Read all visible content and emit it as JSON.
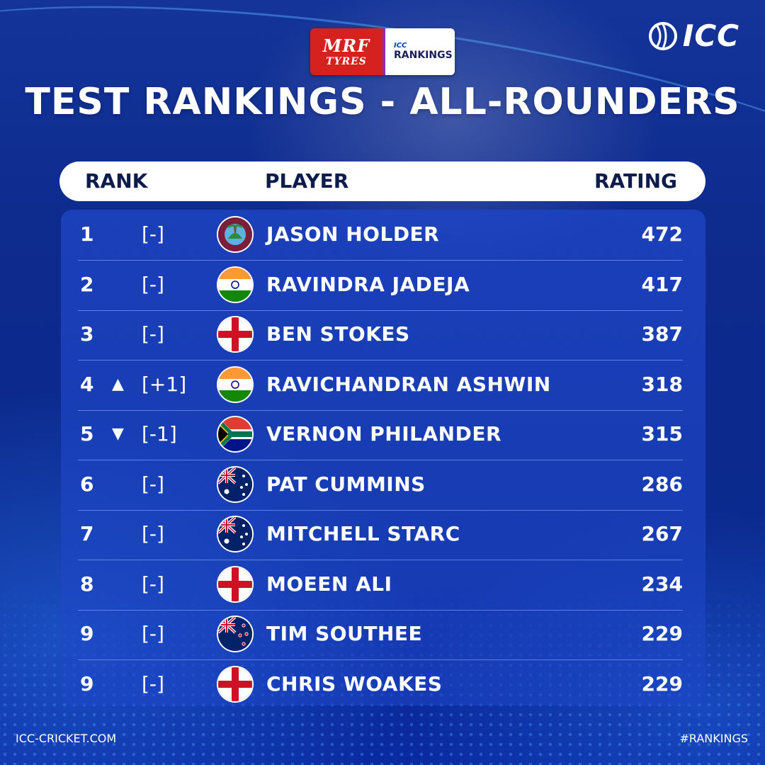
{
  "sponsor": {
    "brand": "MRF",
    "sub": "TYRES",
    "icc_small": "ICC",
    "label": "RANKINGS"
  },
  "logo": {
    "text": "ICC"
  },
  "title": "TEST RANKINGS - ALL-ROUNDERS",
  "header": {
    "rank": "RANK",
    "player": "PLAYER",
    "rating": "RATING"
  },
  "rows": [
    {
      "rank": "1",
      "arrow": "",
      "move": "[-]",
      "flag": "west-indies",
      "player": "JASON HOLDER",
      "rating": "472"
    },
    {
      "rank": "2",
      "arrow": "",
      "move": "[-]",
      "flag": "india",
      "player": "RAVINDRA JADEJA",
      "rating": "417"
    },
    {
      "rank": "3",
      "arrow": "",
      "move": "[-]",
      "flag": "england",
      "player": "BEN STOKES",
      "rating": "387"
    },
    {
      "rank": "4",
      "arrow": "▲",
      "move": "[+1]",
      "flag": "india",
      "player": "RAVICHANDRAN ASHWIN",
      "rating": "318"
    },
    {
      "rank": "5",
      "arrow": "▼",
      "move": "[-1]",
      "flag": "south-africa",
      "player": "VERNON PHILANDER",
      "rating": "315"
    },
    {
      "rank": "6",
      "arrow": "",
      "move": "[-]",
      "flag": "australia",
      "player": "PAT CUMMINS",
      "rating": "286"
    },
    {
      "rank": "7",
      "arrow": "",
      "move": "[-]",
      "flag": "australia",
      "player": "MITCHELL STARC",
      "rating": "267"
    },
    {
      "rank": "8",
      "arrow": "",
      "move": "[-]",
      "flag": "england",
      "player": "MOEEN ALI",
      "rating": "234"
    },
    {
      "rank": "9",
      "arrow": "",
      "move": "[-]",
      "flag": "new-zealand",
      "player": "TIM SOUTHEE",
      "rating": "229"
    },
    {
      "rank": "9",
      "arrow": "",
      "move": "[-]",
      "flag": "england",
      "player": "CHRIS WOAKES",
      "rating": "229"
    }
  ],
  "footer": {
    "left": "ICC-CRICKET.COM",
    "right": "#RANKINGS"
  },
  "colors": {
    "background": "#0d2a8c",
    "accent": "#ffffff",
    "mrf_red": "#d5221e"
  }
}
